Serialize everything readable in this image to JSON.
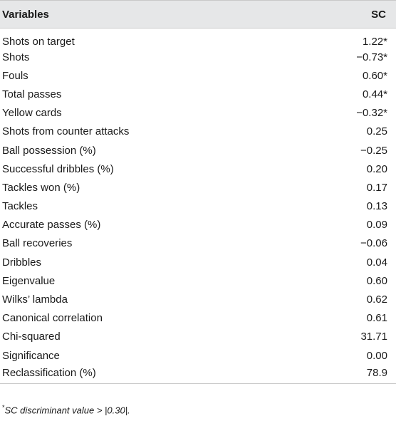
{
  "table": {
    "headers": {
      "variables": "Variables",
      "sc": "SC"
    },
    "rows": [
      {
        "variable": "Shots on target",
        "sc": "1.22*"
      },
      {
        "variable": "Shots",
        "sc": "−0.73*"
      },
      {
        "variable": "Fouls",
        "sc": "0.60*"
      },
      {
        "variable": "Total passes",
        "sc": "0.44*"
      },
      {
        "variable": "Yellow cards",
        "sc": "−0.32*"
      },
      {
        "variable": "Shots from counter attacks",
        "sc": "0.25"
      },
      {
        "variable": "Ball possession (%)",
        "sc": "−0.25"
      },
      {
        "variable": "Successful dribbles (%)",
        "sc": "0.20"
      },
      {
        "variable": "Tackles won (%)",
        "sc": "0.17"
      },
      {
        "variable": "Tackles",
        "sc": "0.13"
      },
      {
        "variable": "Accurate passes (%)",
        "sc": "0.09"
      },
      {
        "variable": "Ball recoveries",
        "sc": "−0.06"
      },
      {
        "variable": "Dribbles",
        "sc": "0.04"
      },
      {
        "variable": "Eigenvalue",
        "sc": "0.60"
      },
      {
        "variable": "Wilks’ lambda",
        "sc": "0.62"
      },
      {
        "variable": "Canonical correlation",
        "sc": "0.61"
      },
      {
        "variable": "Chi-squared",
        "sc": "31.71"
      },
      {
        "variable": "Significance",
        "sc": "0.00"
      },
      {
        "variable": "Reclassification (%)",
        "sc": "78.9"
      }
    ]
  },
  "footnote": {
    "marker": "*",
    "text": "SC discriminant value > |0.30|."
  }
}
